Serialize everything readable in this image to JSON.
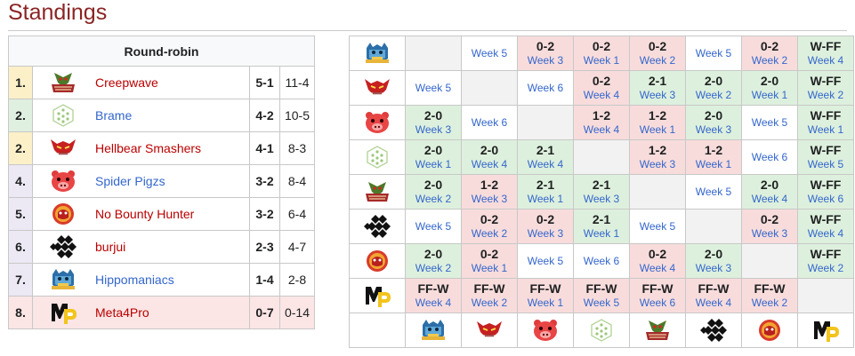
{
  "page": {
    "title": "Standings"
  },
  "standings": {
    "header": "Round-robin",
    "rows": [
      {
        "rank": "1.",
        "team": "Creepwave",
        "matches": "5-1",
        "games": "11-4",
        "logo": "creepwave-logo"
      },
      {
        "rank": "2.",
        "team": "Brame",
        "matches": "4-2",
        "games": "10-5",
        "logo": "brame-logo"
      },
      {
        "rank": "2.",
        "team": "Hellbear Smashers",
        "matches": "4-1",
        "games": "8-3",
        "logo": "hellbear-smashers-logo"
      },
      {
        "rank": "4.",
        "team": "Spider Pigzs",
        "matches": "3-2",
        "games": "8-4",
        "logo": "spider-pigzs-logo"
      },
      {
        "rank": "5.",
        "team": "No Bounty Hunter",
        "matches": "3-2",
        "games": "6-4",
        "logo": "no-bounty-hunter-logo"
      },
      {
        "rank": "6.",
        "team": "burjui",
        "matches": "2-3",
        "games": "4-7",
        "logo": "burjui-logo"
      },
      {
        "rank": "7.",
        "team": "Hippomaniacs",
        "matches": "1-4",
        "games": "2-8",
        "logo": "hippomaniacs-logo"
      },
      {
        "rank": "8.",
        "team": "Meta4Pro",
        "matches": "0-7",
        "games": "0-14",
        "logo": "meta4pro-logo"
      }
    ]
  },
  "crosstable": {
    "row_teams": [
      "hippomaniacs",
      "hellbear",
      "spider",
      "brame",
      "creepwave",
      "burjui",
      "nobounty",
      "meta4pro"
    ],
    "col_teams": [
      "hippomaniacs",
      "hellbear",
      "spider",
      "brame",
      "creepwave",
      "burjui",
      "nobounty",
      "meta4pro"
    ],
    "rows": [
      [
        {
          "t": "blank"
        },
        {
          "t": "none",
          "w": "Week 5"
        },
        {
          "t": "loss",
          "s": "0-2",
          "w": "Week 3"
        },
        {
          "t": "loss",
          "s": "0-2",
          "w": "Week 1"
        },
        {
          "t": "loss",
          "s": "0-2",
          "w": "Week 2"
        },
        {
          "t": "none",
          "w": "Week 5"
        },
        {
          "t": "loss",
          "s": "0-2",
          "w": "Week 2"
        },
        {
          "t": "win",
          "s": "W-FF",
          "w": "Week 4"
        }
      ],
      [
        {
          "t": "none",
          "w": "Week 5"
        },
        {
          "t": "blank"
        },
        {
          "t": "none",
          "w": "Week 6"
        },
        {
          "t": "loss",
          "s": "0-2",
          "w": "Week 4"
        },
        {
          "t": "win",
          "s": "2-1",
          "w": "Week 3"
        },
        {
          "t": "win",
          "s": "2-0",
          "w": "Week 2"
        },
        {
          "t": "win",
          "s": "2-0",
          "w": "Week 1"
        },
        {
          "t": "win",
          "s": "W-FF",
          "w": "Week 2"
        }
      ],
      [
        {
          "t": "win",
          "s": "2-0",
          "w": "Week 3"
        },
        {
          "t": "none",
          "w": "Week 6"
        },
        {
          "t": "blank"
        },
        {
          "t": "loss",
          "s": "1-2",
          "w": "Week 4"
        },
        {
          "t": "loss",
          "s": "1-2",
          "w": "Week 1"
        },
        {
          "t": "win",
          "s": "2-0",
          "w": "Week 3"
        },
        {
          "t": "none",
          "w": "Week 5"
        },
        {
          "t": "win",
          "s": "W-FF",
          "w": "Week 1"
        }
      ],
      [
        {
          "t": "win",
          "s": "2-0",
          "w": "Week 1"
        },
        {
          "t": "win",
          "s": "2-0",
          "w": "Week 4"
        },
        {
          "t": "win",
          "s": "2-1",
          "w": "Week 4"
        },
        {
          "t": "blank"
        },
        {
          "t": "loss",
          "s": "1-2",
          "w": "Week 3"
        },
        {
          "t": "loss",
          "s": "1-2",
          "w": "Week 1"
        },
        {
          "t": "none",
          "w": "Week 6"
        },
        {
          "t": "win",
          "s": "W-FF",
          "w": "Week 5"
        }
      ],
      [
        {
          "t": "win",
          "s": "2-0",
          "w": "Week 2"
        },
        {
          "t": "loss",
          "s": "1-2",
          "w": "Week 3"
        },
        {
          "t": "win",
          "s": "2-1",
          "w": "Week 1"
        },
        {
          "t": "win",
          "s": "2-1",
          "w": "Week 3"
        },
        {
          "t": "blank"
        },
        {
          "t": "none",
          "w": "Week 5"
        },
        {
          "t": "win",
          "s": "2-0",
          "w": "Week 4"
        },
        {
          "t": "win",
          "s": "W-FF",
          "w": "Week 6"
        }
      ],
      [
        {
          "t": "none",
          "w": "Week 5"
        },
        {
          "t": "loss",
          "s": "0-2",
          "w": "Week 2"
        },
        {
          "t": "loss",
          "s": "0-2",
          "w": "Week 3"
        },
        {
          "t": "win",
          "s": "2-1",
          "w": "Week 1"
        },
        {
          "t": "none",
          "w": "Week 5"
        },
        {
          "t": "blank"
        },
        {
          "t": "loss",
          "s": "0-2",
          "w": "Week 3"
        },
        {
          "t": "win",
          "s": "W-FF",
          "w": "Week 4"
        }
      ],
      [
        {
          "t": "win",
          "s": "2-0",
          "w": "Week 2"
        },
        {
          "t": "loss",
          "s": "0-2",
          "w": "Week 1"
        },
        {
          "t": "none",
          "w": "Week 5"
        },
        {
          "t": "none",
          "w": "Week 6"
        },
        {
          "t": "loss",
          "s": "0-2",
          "w": "Week 4"
        },
        {
          "t": "win",
          "s": "2-0",
          "w": "Week 3"
        },
        {
          "t": "blank"
        },
        {
          "t": "win",
          "s": "W-FF",
          "w": "Week 2"
        }
      ],
      [
        {
          "t": "loss",
          "s": "FF-W",
          "w": "Week 4"
        },
        {
          "t": "loss",
          "s": "FF-W",
          "w": "Week 2"
        },
        {
          "t": "loss",
          "s": "FF-W",
          "w": "Week 1"
        },
        {
          "t": "loss",
          "s": "FF-W",
          "w": "Week 5"
        },
        {
          "t": "loss",
          "s": "FF-W",
          "w": "Week 6"
        },
        {
          "t": "loss",
          "s": "FF-W",
          "w": "Week 4"
        },
        {
          "t": "loss",
          "s": "FF-W",
          "w": "Week 2"
        },
        {
          "t": "blank"
        }
      ]
    ]
  },
  "colors": {
    "title": "#8b2424",
    "win": "#ddf0dd",
    "loss": "#f8dcdc",
    "link": "#3366cc"
  }
}
